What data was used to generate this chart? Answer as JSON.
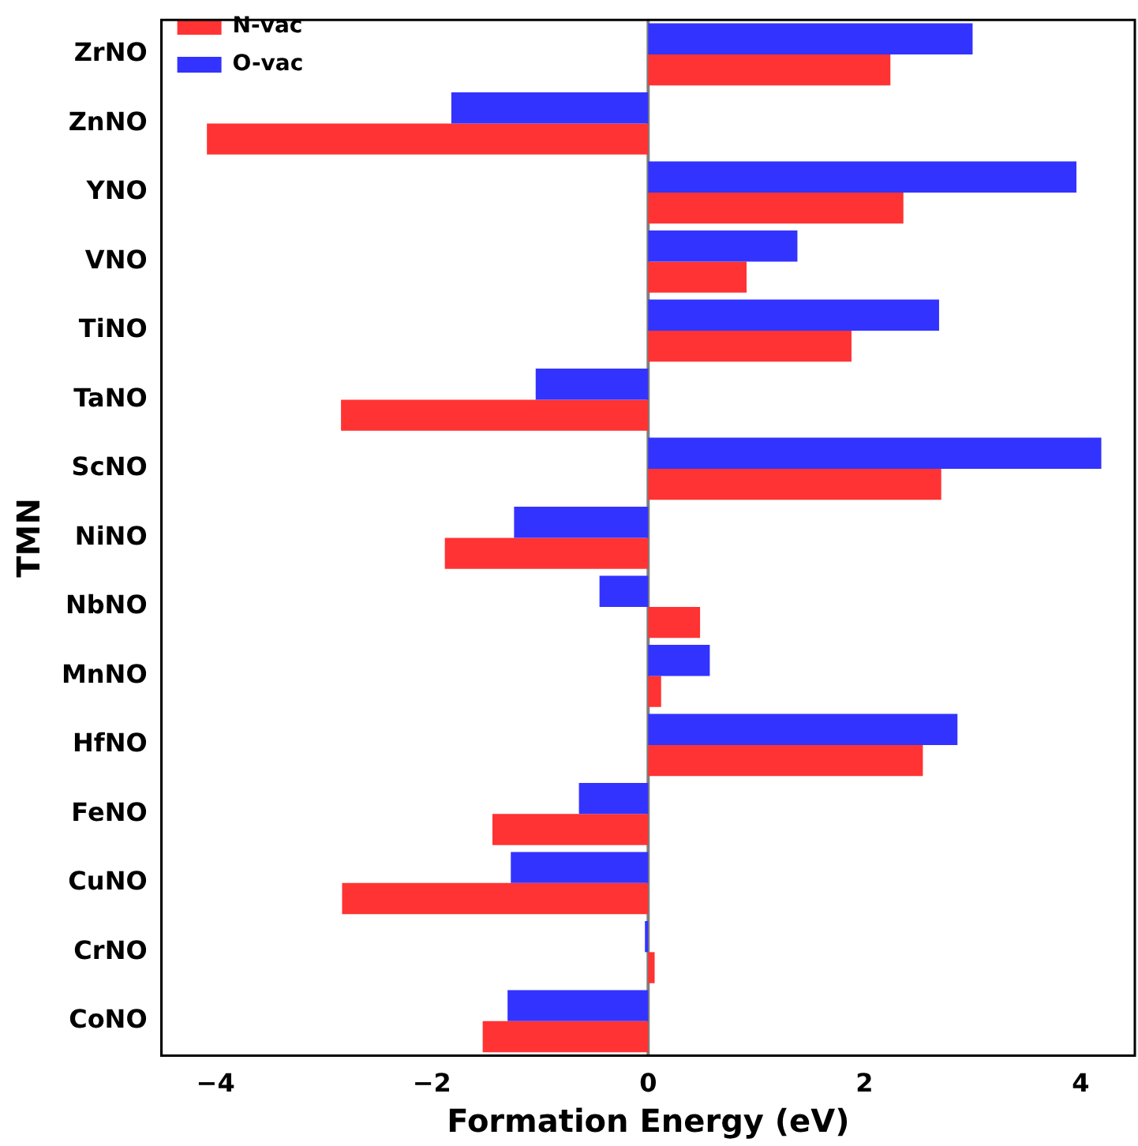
{
  "chart_data": {
    "type": "bar",
    "orientation": "horizontal",
    "xlabel": "Formation Energy (eV)",
    "ylabel": "TMN",
    "categories": [
      "ZrNO",
      "ZnNO",
      "YNO",
      "VNO",
      "TiNO",
      "TaNO",
      "ScNO",
      "NiNO",
      "NbNO",
      "MnNO",
      "HfNO",
      "FeNO",
      "CuNO",
      "CrNO",
      "CoNO"
    ],
    "series": [
      {
        "name": "N-vac",
        "color": "#ff3333",
        "values": [
          2.24,
          -4.08,
          2.36,
          0.91,
          1.88,
          -2.84,
          2.71,
          -1.88,
          0.48,
          0.12,
          2.54,
          -1.44,
          -2.83,
          0.06,
          -1.53
        ]
      },
      {
        "name": "O-vac",
        "color": "#3333ff",
        "values": [
          3.0,
          -1.82,
          3.96,
          1.38,
          2.69,
          -1.04,
          4.19,
          -1.24,
          -0.45,
          0.57,
          2.86,
          -0.64,
          -1.27,
          -0.03,
          -1.3
        ]
      }
    ],
    "xlim": [
      -4.5,
      4.5
    ],
    "xticks": [
      -4,
      -2,
      0,
      2,
      4
    ],
    "ref_lines": [
      {
        "axis": "x",
        "value": 0,
        "color": "#808080"
      }
    ],
    "grid": false,
    "legend": "top left"
  }
}
